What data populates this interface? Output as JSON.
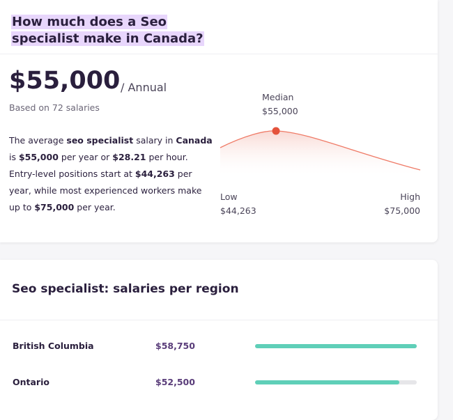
{
  "header": {
    "title": "How much does a Seo specialist make in Canada?"
  },
  "salary": {
    "amount": "$55,000",
    "period": "/ Annual",
    "based_on": "Based on 72 salaries",
    "description": [
      {
        "text": "The average ",
        "bold": false
      },
      {
        "text": "seo specialist",
        "bold": true
      },
      {
        "text": " salary in ",
        "bold": false
      },
      {
        "text": "Canada",
        "bold": true
      },
      {
        "text": " is ",
        "bold": false
      },
      {
        "text": "$55,000",
        "bold": true
      },
      {
        "text": " per year or ",
        "bold": false
      },
      {
        "text": "$28.21",
        "bold": true
      },
      {
        "text": " per hour. Entry-level positions start at ",
        "bold": false
      },
      {
        "text": "$44,263",
        "bold": true
      },
      {
        "text": " per year, while most experienced workers make up to ",
        "bold": false
      },
      {
        "text": "$75,000",
        "bold": true
      },
      {
        "text": " per year.",
        "bold": false
      }
    ],
    "distribution": {
      "median_label": "Median",
      "median": "$55,000",
      "low_label": "Low",
      "low": "$44,263",
      "high_label": "High",
      "high": "$75,000"
    }
  },
  "regions": {
    "title": "Seo specialist: salaries per region",
    "bar_color": "#5fcfb8",
    "rows": [
      {
        "name": "British Columbia",
        "value": 58750,
        "value_label": "$58,750"
      },
      {
        "name": "Ontario",
        "value": 52500,
        "value_label": "$52,500"
      }
    ]
  }
}
